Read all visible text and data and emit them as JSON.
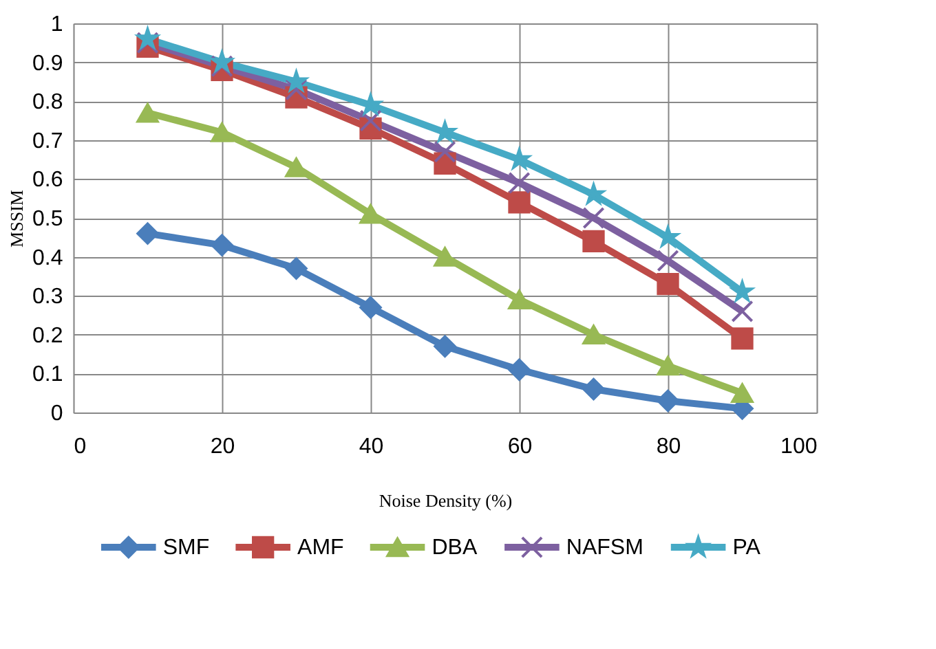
{
  "chart_data": {
    "type": "line",
    "xlabel": "Noise Density (%)",
    "ylabel": "MSSIM",
    "x": [
      10,
      20,
      30,
      40,
      50,
      60,
      70,
      80,
      90
    ],
    "series": [
      {
        "name": "SMF",
        "color": "#4a7ebb",
        "marker": "diamond",
        "values": [
          0.46,
          0.43,
          0.37,
          0.27,
          0.17,
          0.11,
          0.06,
          0.03,
          0.01
        ]
      },
      {
        "name": "AMF",
        "color": "#be4b48",
        "marker": "square",
        "values": [
          0.94,
          0.88,
          0.81,
          0.73,
          0.64,
          0.54,
          0.44,
          0.33,
          0.19
        ]
      },
      {
        "name": "DBA",
        "color": "#98b954",
        "marker": "triangle",
        "values": [
          0.77,
          0.72,
          0.63,
          0.51,
          0.4,
          0.29,
          0.2,
          0.12,
          0.05
        ]
      },
      {
        "name": "NAFSM",
        "color": "#7d60a0",
        "marker": "cross",
        "values": [
          0.95,
          0.89,
          0.83,
          0.75,
          0.67,
          0.59,
          0.5,
          0.39,
          0.26
        ]
      },
      {
        "name": "PA",
        "color": "#46aac5",
        "marker": "star",
        "values": [
          0.96,
          0.9,
          0.85,
          0.79,
          0.72,
          0.65,
          0.56,
          0.45,
          0.31
        ]
      }
    ],
    "xlim": [
      0,
      100
    ],
    "xticks": [
      0,
      20,
      40,
      60,
      80,
      100
    ],
    "ylim": [
      0,
      1
    ],
    "yticks": [
      0,
      0.1,
      0.2,
      0.3,
      0.4,
      0.5,
      0.6,
      0.7,
      0.8,
      0.9,
      1
    ],
    "grid": true,
    "legend": "bottom",
    "line_style": "solid"
  }
}
